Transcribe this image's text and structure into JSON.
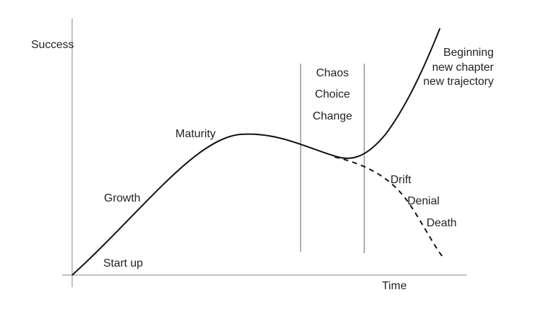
{
  "axes": {
    "y_label": "Success",
    "x_label": "Time"
  },
  "stages": {
    "start_up": "Start up",
    "growth": "Growth",
    "maturity": "Maturity"
  },
  "transition_zone": {
    "words": [
      "Chaos",
      "Choice",
      "Change"
    ]
  },
  "renewal": {
    "lines": [
      "Beginning",
      "new chapter",
      "new trajectory"
    ]
  },
  "decline": {
    "labels": [
      "Drift",
      "Denial",
      "Death"
    ]
  },
  "colors": {
    "line": "#111111",
    "axis": "#9a9a9a",
    "text": "#222222"
  }
}
